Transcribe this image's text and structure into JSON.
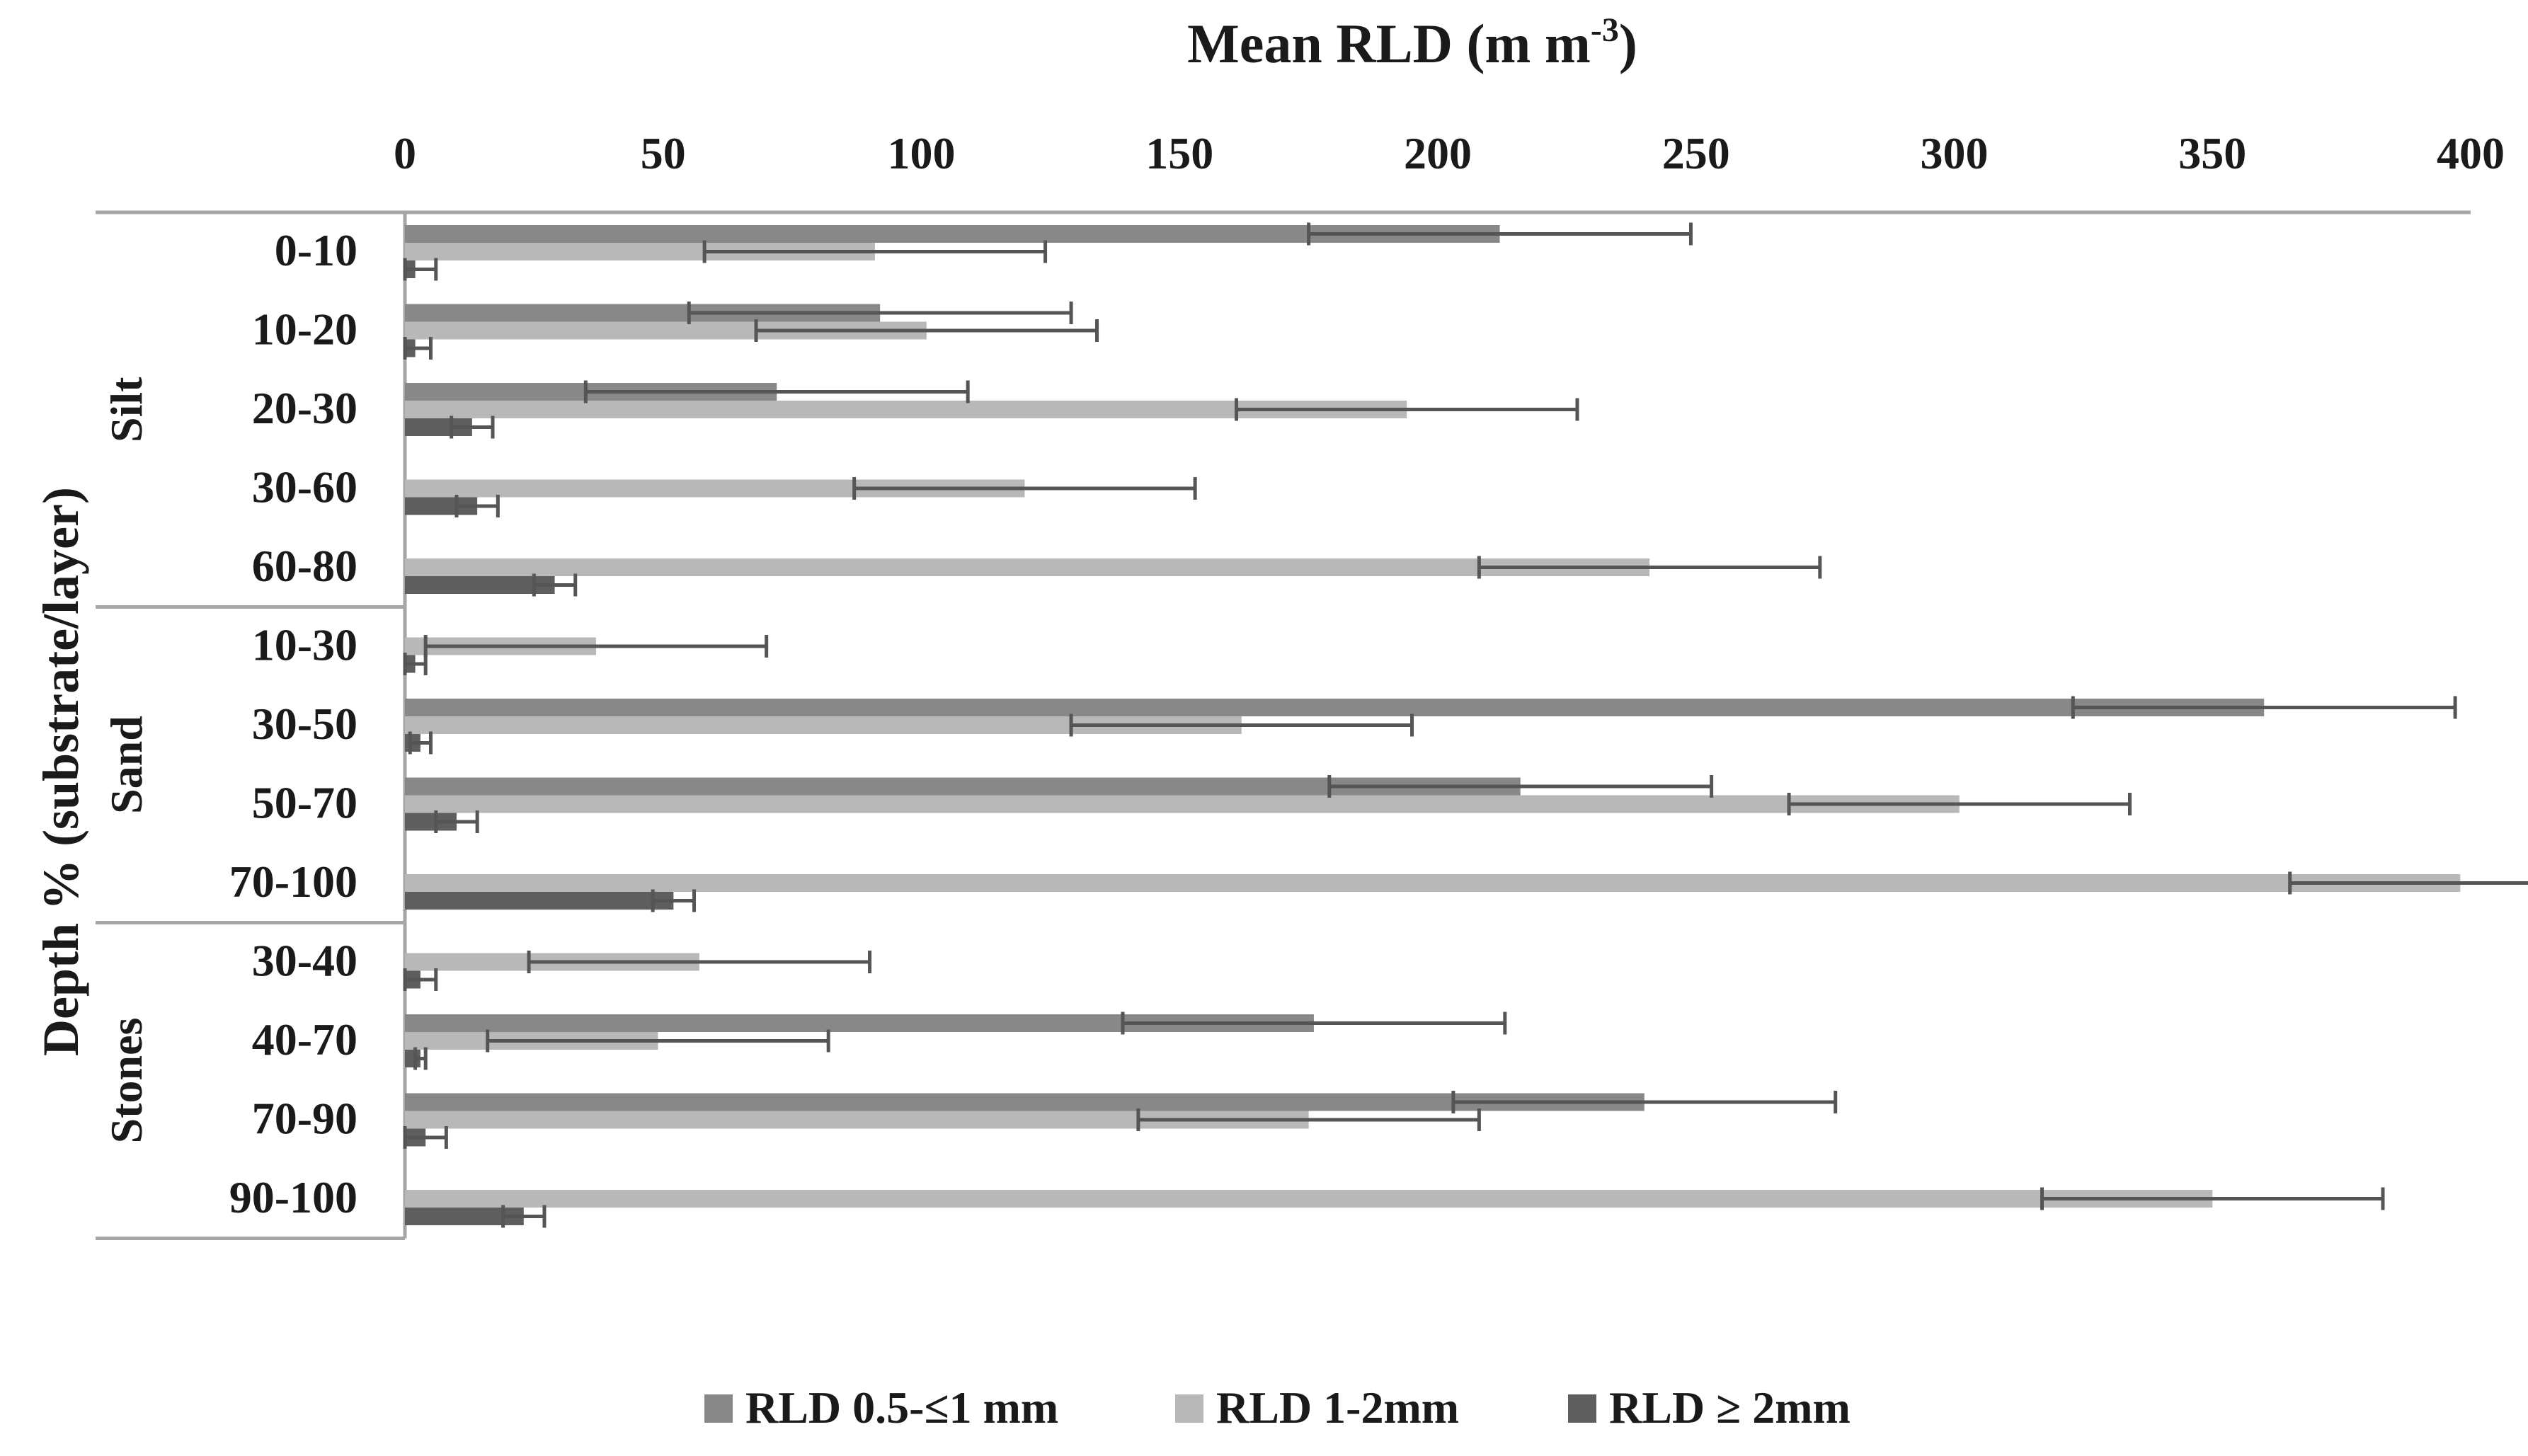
{
  "chart_data": {
    "type": "bar",
    "orientation": "horizontal",
    "title_main": "Mean RLD (m m",
    "title_sup": "-3",
    "title_end": ")",
    "ylabel": "Depth % (substrate/layer)",
    "xlim": [
      0,
      400
    ],
    "xticks": [
      0,
      50,
      100,
      150,
      200,
      250,
      300,
      350,
      400
    ],
    "xtick_labels": [
      "0",
      "50",
      "100",
      "150",
      "200",
      "250",
      "300",
      "350",
      "400"
    ],
    "groups": [
      {
        "name": "Silt",
        "categories": [
          "0-10",
          "10-20",
          "20-30",
          "30-60",
          "60-80"
        ]
      },
      {
        "name": "Sand",
        "categories": [
          "10-30",
          "30-50",
          "50-70",
          "70-100"
        ]
      },
      {
        "name": "Stones",
        "categories": [
          "30-40",
          "40-70",
          "70-90",
          "90-100"
        ]
      }
    ],
    "categories": [
      "0-10",
      "10-20",
      "20-30",
      "30-60",
      "60-80",
      "10-30",
      "30-50",
      "50-70",
      "70-100",
      "30-40",
      "40-70",
      "70-90",
      "90-100"
    ],
    "series": [
      {
        "name": "RLD 0.5-≤1 mm",
        "color": "#888888",
        "values": [
          212,
          92,
          72,
          0,
          0,
          0,
          360,
          216,
          0,
          0,
          176,
          240,
          0
        ],
        "errors": [
          37,
          37,
          37,
          0,
          0,
          0,
          37,
          37,
          0,
          0,
          37,
          37,
          0
        ]
      },
      {
        "name": "RLD 1-2mm",
        "color": "#b8b8b8",
        "values": [
          91,
          101,
          194,
          120,
          241,
          37,
          162,
          301,
          398,
          57,
          49,
          175,
          350
        ],
        "errors": [
          33,
          33,
          33,
          33,
          33,
          33,
          33,
          33,
          33,
          33,
          33,
          33,
          33
        ]
      },
      {
        "name": "RLD ≥ 2mm",
        "color": "#5e5e5e",
        "values": [
          2,
          2,
          13,
          14,
          29,
          2,
          3,
          10,
          52,
          3,
          3,
          4,
          23
        ],
        "errors": [
          4,
          3,
          4,
          4,
          4,
          2,
          2,
          4,
          4,
          3,
          1,
          4,
          4
        ]
      }
    ],
    "legend_position": "bottom"
  }
}
